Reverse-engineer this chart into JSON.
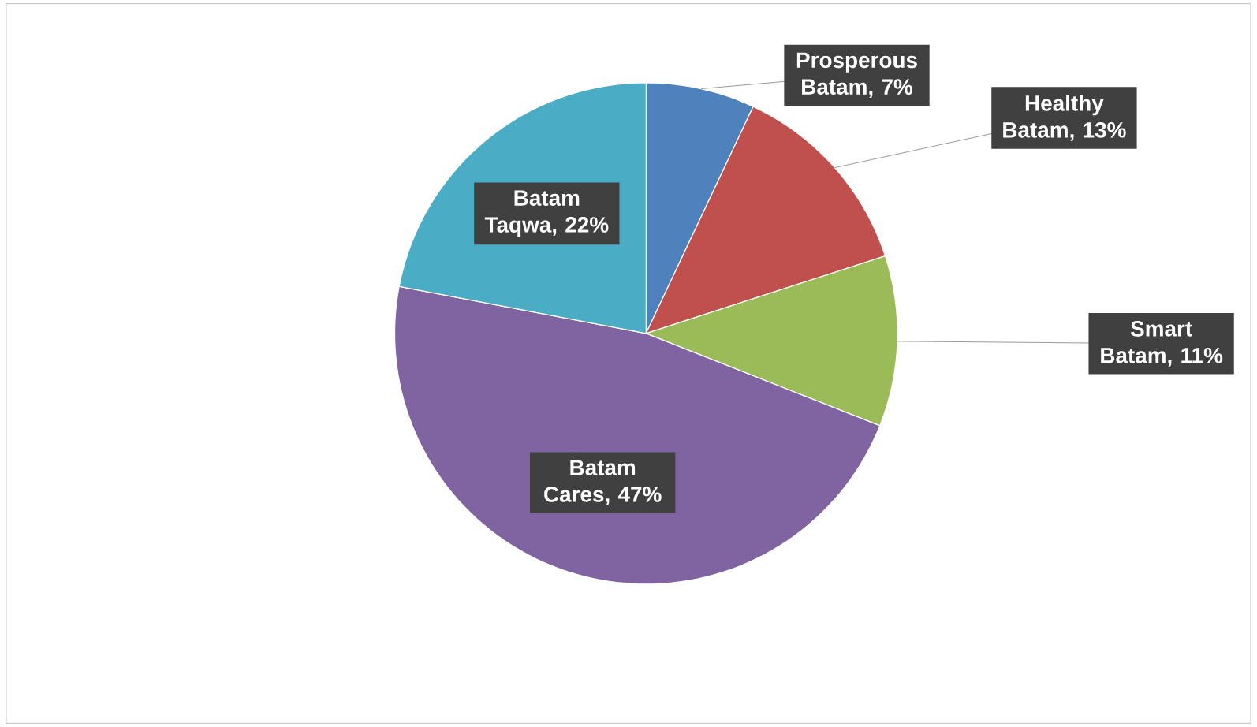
{
  "chart_data": {
    "type": "pie",
    "categories": [
      "Prosperous Batam, 7%",
      "Healthy Batam, 13%",
      "Smart Batam, 11%",
      "Batam Cares, 47%",
      "Batam Taqwa, 22%"
    ],
    "values": [
      7,
      13,
      11,
      47,
      22
    ],
    "colors": [
      "#4f81bd",
      "#c0504d",
      "#9bbb59",
      "#8064a2",
      "#4bacc6"
    ]
  }
}
